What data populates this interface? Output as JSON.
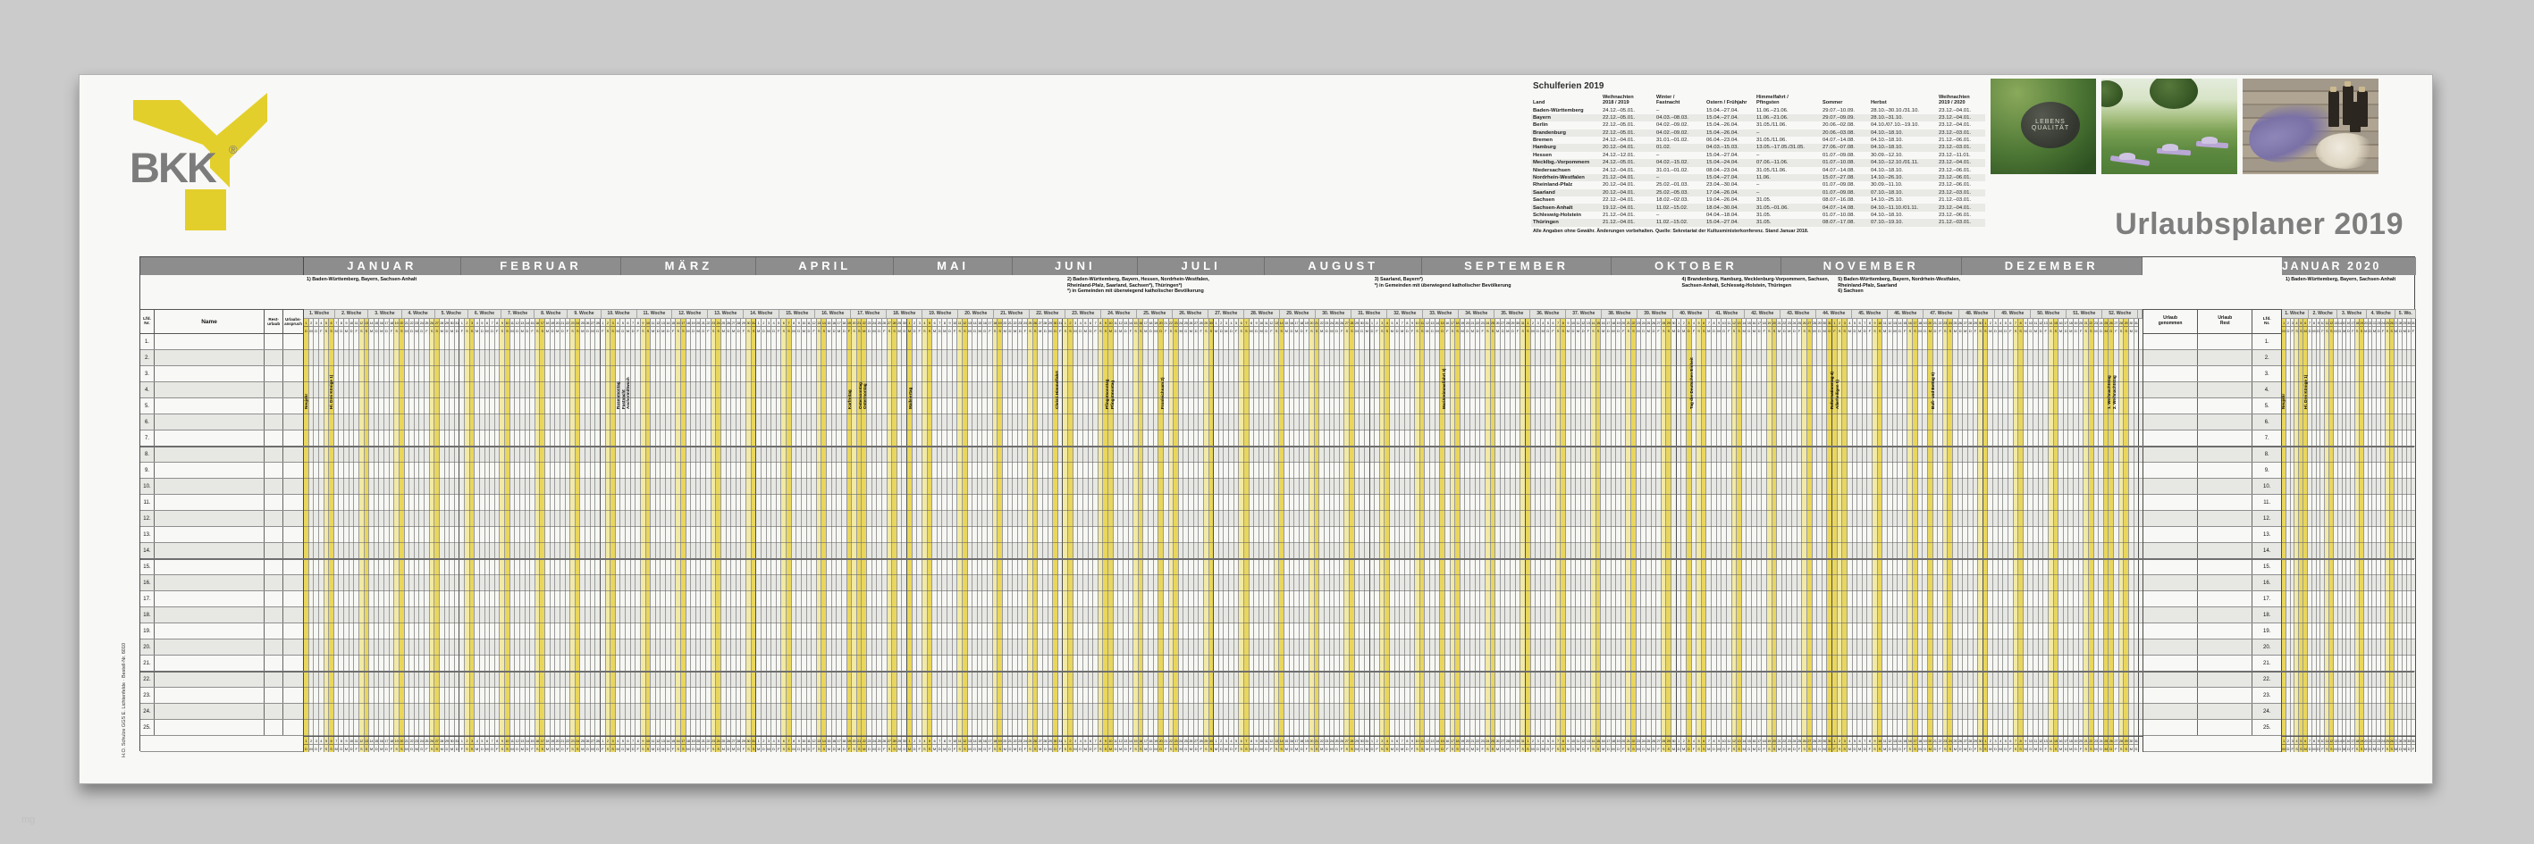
{
  "title": "Urlaubsplaner 2019",
  "watermark": "mg",
  "imprint": "H.O. Schulze GGS E. Lichtenfelde · Bestell-Nr. 6010",
  "brand": {
    "name": "BKK",
    "registered": "®"
  },
  "colors": {
    "accent_yellow": "#e9d65c",
    "weekend_pale": "#f2e9a4",
    "month_bar": "#8d8d8d",
    "title_gray": "#7e7e7e"
  },
  "photos": {
    "stone_text": "LEBENS\nQUALITÄT",
    "items": [
      "stone-lebensqualitaet",
      "yoga-im-park",
      "lavendel-und-flaschen"
    ]
  },
  "schulferien": {
    "title": "Schulferien 2019",
    "note": "Alle Angaben ohne Gewähr. Änderungen vorbehalten. Quelle: Sekretariat der Kultusministerkonferenz. Stand Januar 2018.",
    "columns": [
      "Land",
      "Weihnachten\n2018 / 2019",
      "Winter /\nFastnacht",
      "Ostern / Frühjahr",
      "Himmelfahrt /\nPfingsten",
      "Sommer",
      "Herbst",
      "Weihnachten\n2019 / 2020"
    ],
    "rows": [
      {
        "land": "Baden-Württemberg",
        "values": [
          "24.12.–05.01.",
          "–",
          "15.04.–27.04.",
          "11.06.–21.06.",
          "29.07.–10.09.",
          "28.10.–30.10./31.10.",
          "23.12.–04.01."
        ]
      },
      {
        "land": "Bayern",
        "values": [
          "22.12.–05.01.",
          "04.03.–08.03.",
          "15.04.–27.04.",
          "11.06.–21.06.",
          "29.07.–09.09.",
          "28.10.–31.10.",
          "23.12.–04.01."
        ]
      },
      {
        "land": "Berlin",
        "values": [
          "22.12.–05.01.",
          "04.02.–09.02.",
          "15.04.–26.04.",
          "31.05./11.06.",
          "20.06.–02.08.",
          "04.10./07.10.–19.10.",
          "23.12.–04.01."
        ]
      },
      {
        "land": "Brandenburg",
        "values": [
          "22.12.–05.01.",
          "04.02.–09.02.",
          "15.04.–26.04.",
          "–",
          "20.06.–03.08.",
          "04.10.–18.10.",
          "23.12.–03.01."
        ]
      },
      {
        "land": "Bremen",
        "values": [
          "24.12.–04.01.",
          "31.01.–01.02.",
          "06.04.–23.04.",
          "31.05./11.06.",
          "04.07.–14.08.",
          "04.10.–18.10.",
          "21.12.–06.01."
        ]
      },
      {
        "land": "Hamburg",
        "values": [
          "20.12.–04.01.",
          "01.02.",
          "04.03.–15.03.",
          "13.05.–17.05./31.05.",
          "27.06.–07.08.",
          "04.10.–18.10.",
          "23.12.–03.01."
        ]
      },
      {
        "land": "Hessen",
        "values": [
          "24.12.–12.01.",
          "–",
          "15.04.–27.04.",
          "–",
          "01.07.–09.08.",
          "30.09.–12.10.",
          "23.12.–11.01."
        ]
      },
      {
        "land": "Mecklbg.-Vorpommern",
        "values": [
          "24.12.–05.01.",
          "04.02.–15.02.",
          "15.04.–24.04.",
          "07.06.–11.06.",
          "01.07.–10.08.",
          "04.10.–12.10./01.11.",
          "23.12.–04.01."
        ]
      },
      {
        "land": "Niedersachsen",
        "values": [
          "24.12.–04.01.",
          "31.01.–01.02.",
          "08.04.–23.04.",
          "31.05./11.06.",
          "04.07.–14.08.",
          "04.10.–18.10.",
          "23.12.–06.01."
        ]
      },
      {
        "land": "Nordrhein-Westfalen",
        "values": [
          "21.12.–04.01.",
          "–",
          "15.04.–27.04.",
          "11.06.",
          "15.07.–27.08.",
          "14.10.–26.10.",
          "23.12.–06.01."
        ]
      },
      {
        "land": "Rheinland-Pfalz",
        "values": [
          "20.12.–04.01.",
          "25.02.–01.03.",
          "23.04.–30.04.",
          "–",
          "01.07.–09.08.",
          "30.09.–11.10.",
          "23.12.–06.01."
        ]
      },
      {
        "land": "Saarland",
        "values": [
          "20.12.–04.01.",
          "25.02.–05.03.",
          "17.04.–26.04.",
          "–",
          "01.07.–09.08.",
          "07.10.–18.10.",
          "23.12.–03.01."
        ]
      },
      {
        "land": "Sachsen",
        "values": [
          "22.12.–04.01.",
          "18.02.–02.03.",
          "19.04.–26.04.",
          "31.05.",
          "08.07.–16.08.",
          "14.10.–25.10.",
          "21.12.–03.01."
        ]
      },
      {
        "land": "Sachsen-Anhalt",
        "values": [
          "19.12.–04.01.",
          "11.02.–15.02.",
          "18.04.–30.04.",
          "31.05.–01.06.",
          "04.07.–14.08.",
          "04.10.–11.10./01.11.",
          "23.12.–04.01."
        ]
      },
      {
        "land": "Schleswig-Holstein",
        "values": [
          "21.12.–04.01.",
          "–",
          "04.04.–18.04.",
          "31.05.",
          "01.07.–10.08.",
          "04.10.–18.10.",
          "23.12.–06.01."
        ]
      },
      {
        "land": "Thüringen",
        "values": [
          "21.12.–04.01.",
          "11.02.–15.02.",
          "15.04.–27.04.",
          "31.05.",
          "08.07.–17.08.",
          "07.10.–19.10.",
          "21.12.–03.01."
        ]
      }
    ]
  },
  "calendar": {
    "weekday_letters": [
      "M",
      "D",
      "M",
      "D",
      "F",
      "S",
      "S"
    ],
    "left_columns": {
      "lfd": "Lfd.\nNr.",
      "name": "Name",
      "rest": "Rest-\nurlaub",
      "anspruch": "Urlaubs-\nanspruch"
    },
    "totals_columns": {
      "taken": "Urlaub\ngenommen",
      "rest": "Urlaub\nRest",
      "lfd": "Lfd.\nNr."
    },
    "row_numbers": [
      "1.",
      "2.",
      "3.",
      "4.",
      "5.",
      "6.",
      "7.",
      "8.",
      "9.",
      "10.",
      "11.",
      "12.",
      "13.",
      "14.",
      "15.",
      "16.",
      "17.",
      "18.",
      "19.",
      "20.",
      "21.",
      "22.",
      "23.",
      "24.",
      "25."
    ],
    "main": {
      "start_weekday_index": 1,
      "months": [
        {
          "name": "JANUAR",
          "days": 31
        },
        {
          "name": "FEBRUAR",
          "days": 28
        },
        {
          "name": "MÄRZ",
          "days": 31
        },
        {
          "name": "APRIL",
          "days": 30
        },
        {
          "name": "MAI",
          "days": 31
        },
        {
          "name": "JUNI",
          "days": 30
        },
        {
          "name": "JULI",
          "days": 31
        },
        {
          "name": "AUGUST",
          "days": 31
        },
        {
          "name": "SEPTEMBER",
          "days": 30
        },
        {
          "name": "OKTOBER",
          "days": 31
        },
        {
          "name": "NOVEMBER",
          "days": 30
        },
        {
          "name": "DEZEMBER",
          "days": 31
        }
      ],
      "footnotes": [
        {
          "month_index": 0,
          "text": "1) Baden-Württemberg, Bayern, Sachsen-Anhalt"
        },
        {
          "month_index": 5,
          "text": "2) Baden-Württemberg, Bayern, Hessen, Nordrhein-Westfalen,\nRheinland-Pfalz, Saarland, Sachsen*), Thüringen*)\n*) in Gemeinden mit überwiegend katholischer Bevölkerung"
        },
        {
          "month_index": 7,
          "text": "3) Saarland, Bayern*)\n*) in Gemeinden mit überwiegend katholischer Bevölkerung"
        },
        {
          "month_index": 9,
          "text": "4) Brandenburg, Hamburg, Mecklenburg-Vorpommern, Sachsen,\nSachsen-Anhalt, Schleswig-Holstein, Thüringen"
        },
        {
          "month_index": 10,
          "text": "5) Baden-Württemberg, Bayern, Nordrhein-Westfalen,\nRheinland-Pfalz, Saarland\n6) Sachsen"
        }
      ],
      "week_labels": [
        "1. Woche",
        "2. Woche",
        "3. Woche",
        "4. Woche",
        "5. Woche",
        "6. Woche",
        "7. Woche",
        "8. Woche",
        "9. Woche",
        "10. Woche",
        "11. Woche",
        "12. Woche",
        "13. Woche",
        "14. Woche",
        "15. Woche",
        "16. Woche",
        "17. Woche",
        "18. Woche",
        "19. Woche",
        "20. Woche",
        "21. Woche",
        "22. Woche",
        "23. Woche",
        "24. Woche",
        "25. Woche",
        "26. Woche",
        "27. Woche",
        "28. Woche",
        "29. Woche",
        "30. Woche",
        "31. Woche",
        "32. Woche",
        "33. Woche",
        "34. Woche",
        "35. Woche",
        "36. Woche",
        "37. Woche",
        "38. Woche",
        "39. Woche",
        "40. Woche",
        "41. Woche",
        "42. Woche",
        "43. Woche",
        "44. Woche",
        "45. Woche",
        "46. Woche",
        "47. Woche",
        "48. Woche",
        "49. Woche",
        "50. Woche",
        "51. Woche",
        "52. Woche",
        ""
      ],
      "holidays": [
        {
          "month_index": 0,
          "day": 1,
          "label": "Neujahr"
        },
        {
          "month_index": 0,
          "day": 6,
          "label": "Hl. Drei Könige 1)"
        },
        {
          "month_index": 2,
          "day": 4,
          "label": "Rosenmontag",
          "mark": false
        },
        {
          "month_index": 2,
          "day": 5,
          "label": "Fastnacht",
          "mark": false
        },
        {
          "month_index": 2,
          "day": 6,
          "label": "Aschermittwoch",
          "mark": false
        },
        {
          "month_index": 3,
          "day": 19,
          "label": "Karfreitag"
        },
        {
          "month_index": 3,
          "day": 21,
          "label": "Ostersonntag"
        },
        {
          "month_index": 3,
          "day": 22,
          "label": "Ostermontag"
        },
        {
          "month_index": 4,
          "day": 1,
          "label": "Maifeiertag"
        },
        {
          "month_index": 4,
          "day": 30,
          "label": "Christi Himmelfahrt"
        },
        {
          "month_index": 5,
          "day": 9,
          "label": "Pfingstsonntag"
        },
        {
          "month_index": 5,
          "day": 10,
          "label": "Pfingstmontag"
        },
        {
          "month_index": 5,
          "day": 20,
          "label": "Fronleichnam 2)"
        },
        {
          "month_index": 7,
          "day": 15,
          "label": "Mariä Himmelfahrt 3)"
        },
        {
          "month_index": 9,
          "day": 3,
          "label": "Tag der Deutschen Einheit"
        },
        {
          "month_index": 9,
          "day": 31,
          "label": "Reformationstag 4)"
        },
        {
          "month_index": 10,
          "day": 1,
          "label": "Allerheiligen 5)"
        },
        {
          "month_index": 10,
          "day": 20,
          "label": "Buß- und Bettag 6)"
        },
        {
          "month_index": 11,
          "day": 25,
          "label": "1. Weihnachtstag"
        },
        {
          "month_index": 11,
          "day": 26,
          "label": "2. Weihnachtstag"
        }
      ]
    },
    "jan2020": {
      "name": "JANUAR 2020",
      "start_weekday_index": 2,
      "days": 31,
      "footnote": "1) Baden-Württemberg, Bayern, Sachsen-Anhalt",
      "week_labels": [
        "1. Woche",
        "2. Woche",
        "3. Woche",
        "4. Woche",
        "5. Wo."
      ],
      "holidays": [
        {
          "day": 1,
          "label": "Neujahr"
        },
        {
          "day": 6,
          "label": "Hl. Drei Könige 1)"
        }
      ]
    }
  }
}
